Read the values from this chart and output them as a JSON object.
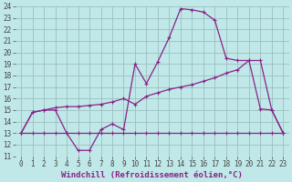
{
  "xlabel": "Windchill (Refroidissement éolien,°C)",
  "bg_color": "#c0e8e8",
  "grid_color": "#9bbfbf",
  "line_color": "#882288",
  "x_min": 0,
  "x_max": 23,
  "y_min": 11,
  "y_max": 24,
  "line1_x": [
    0,
    1,
    2,
    3,
    4,
    5,
    6,
    7,
    8,
    9,
    10,
    11,
    12,
    13,
    14,
    15,
    16,
    17,
    18,
    19,
    20,
    21,
    22,
    23
  ],
  "line1_y": [
    13,
    14.8,
    15.0,
    15.0,
    13.0,
    11.5,
    11.5,
    13.3,
    13.8,
    13.3,
    19.0,
    17.3,
    19.2,
    21.3,
    23.8,
    23.7,
    23.5,
    22.8,
    19.5,
    19.3,
    19.3,
    15.1,
    15.0,
    13.0
  ],
  "line2_x": [
    0,
    1,
    2,
    3,
    4,
    5,
    6,
    7,
    8,
    9,
    10,
    11,
    12,
    13,
    14,
    15,
    16,
    17,
    18,
    19,
    20,
    21,
    22,
    23
  ],
  "line2_y": [
    13,
    14.8,
    15.0,
    15.2,
    15.3,
    15.3,
    15.4,
    15.5,
    15.7,
    16.0,
    15.5,
    16.2,
    16.5,
    16.8,
    17.0,
    17.2,
    17.5,
    17.8,
    18.2,
    18.5,
    19.3,
    19.3,
    15.0,
    13.0
  ],
  "line3_x": [
    0,
    1,
    2,
    3,
    4,
    5,
    6,
    7,
    8,
    9,
    10,
    11,
    12,
    13,
    14,
    15,
    16,
    17,
    18,
    19,
    20,
    21,
    22,
    23
  ],
  "line3_y": [
    13,
    13.0,
    13.0,
    13.0,
    13.0,
    13.0,
    13.0,
    13.0,
    13.0,
    13.0,
    13.0,
    13.0,
    13.0,
    13.0,
    13.0,
    13.0,
    13.0,
    13.0,
    13.0,
    13.0,
    13.0,
    13.0,
    13.0,
    13.0
  ],
  "xtick_labels": [
    "0",
    "1",
    "2",
    "3",
    "4",
    "5",
    "6",
    "7",
    "8",
    "9",
    "10",
    "11",
    "12",
    "13",
    "14",
    "15",
    "16",
    "17",
    "18",
    "19",
    "20",
    "21",
    "22",
    "23"
  ],
  "ytick_labels": [
    "11",
    "12",
    "13",
    "14",
    "15",
    "16",
    "17",
    "18",
    "19",
    "20",
    "21",
    "22",
    "23",
    "24"
  ],
  "tick_fontsize": 5.5,
  "xlabel_fontsize": 6.5
}
